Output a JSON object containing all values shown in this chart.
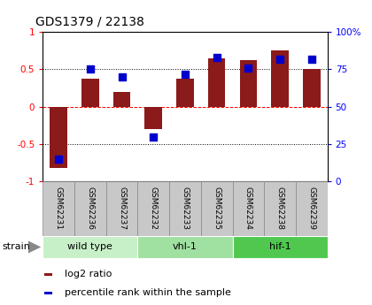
{
  "title": "GDS1379 / 22138",
  "samples": [
    "GSM62231",
    "GSM62236",
    "GSM62237",
    "GSM62232",
    "GSM62233",
    "GSM62235",
    "GSM62234",
    "GSM62238",
    "GSM62239"
  ],
  "log2_ratios": [
    -0.82,
    0.38,
    0.2,
    -0.3,
    0.38,
    0.65,
    0.62,
    0.76,
    0.5
  ],
  "percentile_ranks": [
    15,
    75,
    70,
    30,
    72,
    83,
    76,
    82,
    82
  ],
  "groups": [
    {
      "label": "wild type",
      "start": 0,
      "end": 3,
      "color": "#c8f0c8"
    },
    {
      "label": "vhl-1",
      "start": 3,
      "end": 6,
      "color": "#a0e0a0"
    },
    {
      "label": "hif-1",
      "start": 6,
      "end": 9,
      "color": "#50c850"
    }
  ],
  "bar_color": "#8B1A1A",
  "dot_color": "#0000CD",
  "ylim_left": [
    -1.0,
    1.0
  ],
  "ylim_right": [
    0,
    100
  ],
  "yticks_left": [
    -1.0,
    -0.5,
    0.0,
    0.5,
    1.0
  ],
  "ytick_labels_left": [
    "-1",
    "-0.5",
    "0",
    "0.5",
    "1"
  ],
  "yticks_right": [
    0,
    25,
    50,
    75,
    100
  ],
  "ytick_labels_right": [
    "0",
    "25",
    "50",
    "75",
    "100%"
  ],
  "hlines": [
    -0.5,
    0.0,
    0.5
  ],
  "legend_log2": "log2 ratio",
  "legend_pct": "percentile rank within the sample",
  "strain_label": "strain",
  "bar_width": 0.55,
  "bg_color": "#ffffff",
  "sample_box_color": "#c8c8c8",
  "sample_box_edge": "#888888"
}
